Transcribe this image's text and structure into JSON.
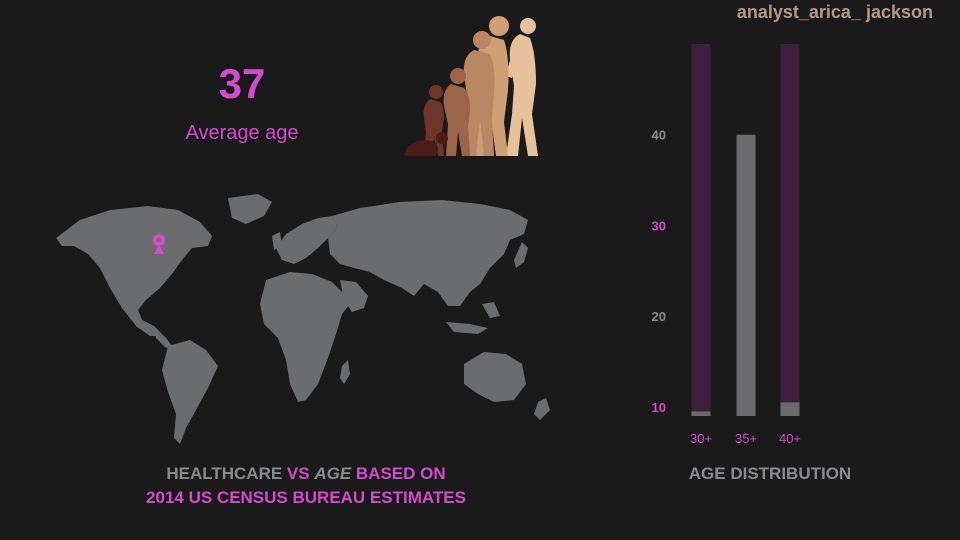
{
  "author": "analyst_arica_ jackson",
  "stat": {
    "value": "37",
    "label": "Average age"
  },
  "map_title": {
    "part1": "HEALTHCARE ",
    "part2": "VS ",
    "part3": "AGE",
    "part4": " BASED ON",
    "line2": "2014 US CENSUS BUREAU  ESTIMATES"
  },
  "colors": {
    "accent": "#d54bd0",
    "gray": "#8a8b8d",
    "bar_track": "#3f1f3e",
    "bar_fill": "#6a6a6c",
    "author": "#b79884",
    "background": "#1b1a1b"
  },
  "chart_data": {
    "type": "bar",
    "title": "AGE DISTRIBUTION",
    "categories": [
      "30+",
      "35+",
      "40+"
    ],
    "values": [
      9.5,
      40,
      10.5
    ],
    "track_max": 50,
    "ylim": [
      9,
      50
    ],
    "yticks": [
      {
        "value": 10,
        "label": "10",
        "highlight": true
      },
      {
        "value": 20,
        "label": "20",
        "highlight": false
      },
      {
        "value": 30,
        "label": "30",
        "highlight": true
      },
      {
        "value": 40,
        "label": "40",
        "highlight": false
      }
    ]
  }
}
